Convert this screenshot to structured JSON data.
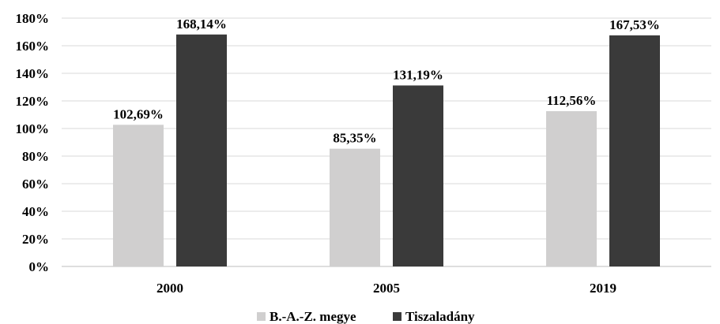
{
  "chart_data": {
    "type": "bar",
    "categories": [
      "2000",
      "2005",
      "2019"
    ],
    "series": [
      {
        "name": "B.-A.-Z. megye",
        "values": [
          102.69,
          85.35,
          112.56
        ],
        "labels": [
          "102,69%",
          "85,35%",
          "112,56%"
        ],
        "color": "#d0cfcf"
      },
      {
        "name": "Tiszaladány",
        "values": [
          168.14,
          131.19,
          167.53
        ],
        "labels": [
          "168,14%",
          "131,19%",
          "167,53%"
        ],
        "color": "#3a3a3a"
      }
    ],
    "ylim": [
      0,
      180
    ],
    "yticks": [
      0,
      20,
      40,
      60,
      80,
      100,
      120,
      140,
      160,
      180
    ],
    "ytick_labels": [
      "0%",
      "20%",
      "40%",
      "60%",
      "80%",
      "100%",
      "120%",
      "140%",
      "160%",
      "180%"
    ],
    "grid": true,
    "legend_position": "bottom"
  }
}
